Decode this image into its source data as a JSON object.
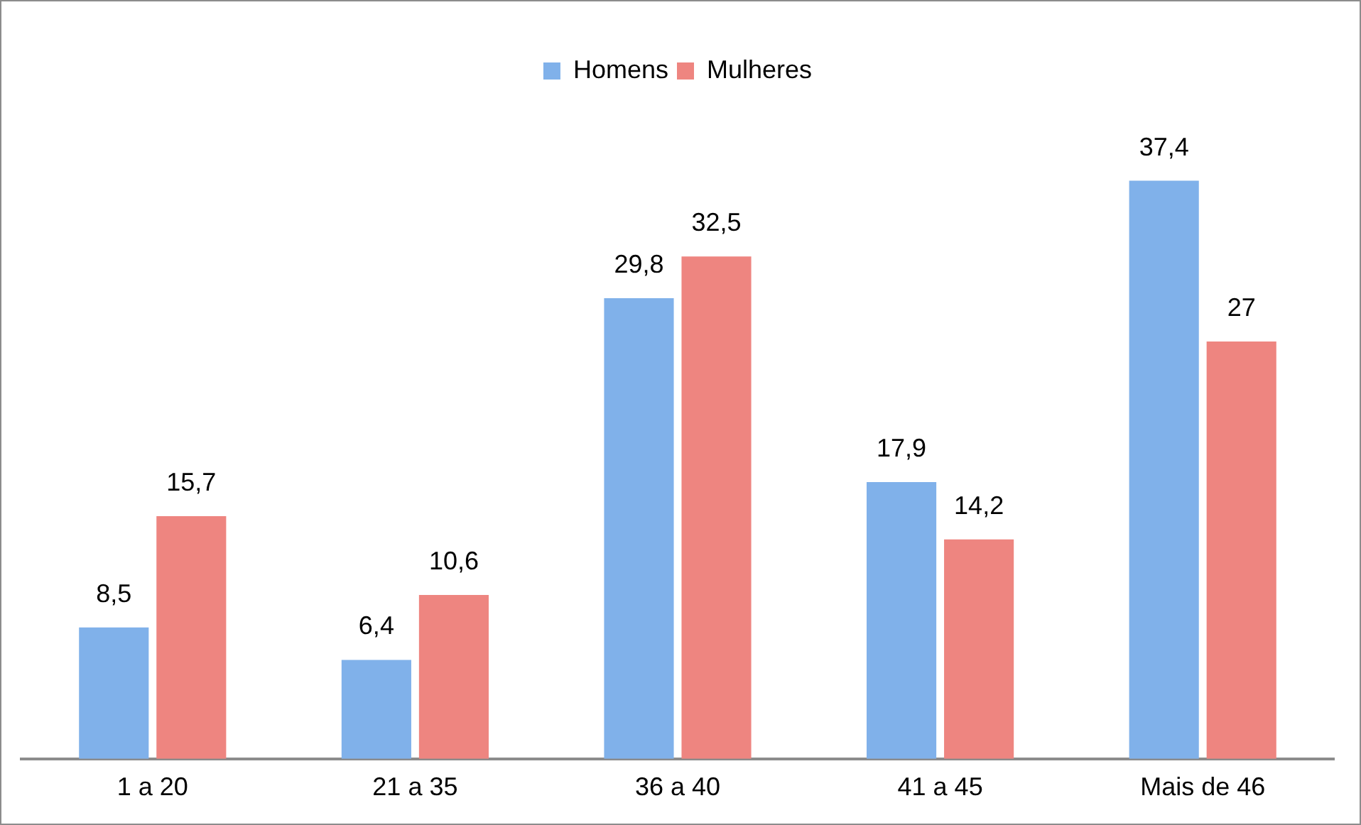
{
  "chart_data": {
    "type": "bar",
    "categories": [
      "1 a 20",
      "21 a 35",
      "36 a 40",
      "41 a 45",
      "Mais de 46"
    ],
    "series": [
      {
        "name": "Homens",
        "color": "#80b1ea",
        "values": [
          8.5,
          6.4,
          29.8,
          17.9,
          37.4
        ],
        "value_labels": [
          "8,5",
          "6,4",
          "29,8",
          "17,9",
          "37,4"
        ]
      },
      {
        "name": "Mulheres",
        "color": "#ee8580",
        "values": [
          15.7,
          10.6,
          32.5,
          14.2,
          27
        ],
        "value_labels": [
          "15,7",
          "10,6",
          "32,5",
          "14,2",
          "27"
        ]
      }
    ],
    "legend": "top",
    "grid": false,
    "tick_labels": "x"
  }
}
